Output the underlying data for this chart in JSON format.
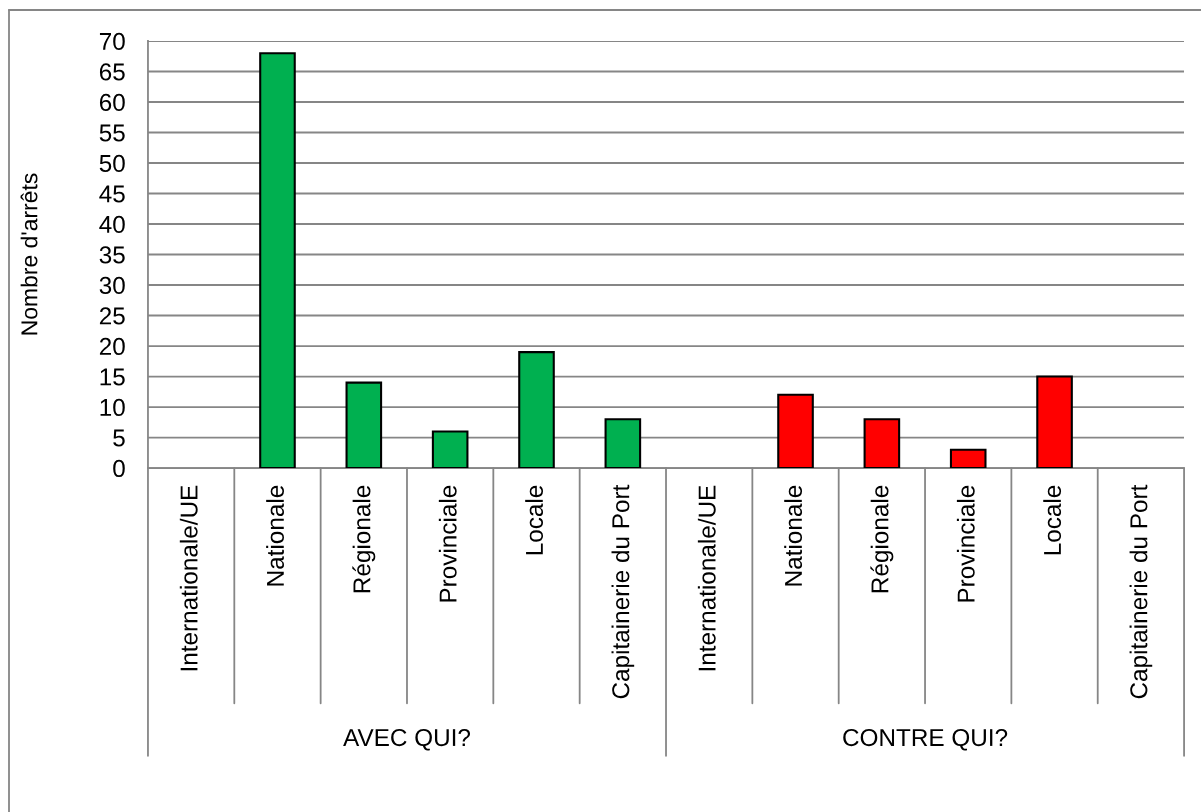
{
  "chart_data": {
    "type": "bar",
    "ylabel": "Nombre d'arrêts",
    "categories": [
      "Internationale/UE",
      "Nationale",
      "Régionale",
      "Provinciale",
      "Locale",
      "Capitainerie du Port",
      "Internationale/UE",
      "Nationale",
      "Régionale",
      "Provinciale",
      "Locale",
      "Capitainerie du Port"
    ],
    "values": [
      null,
      68,
      14,
      6,
      19,
      8,
      null,
      12,
      8,
      3,
      15,
      null
    ],
    "colors": [
      "#00b050",
      "#00b050",
      "#00b050",
      "#00b050",
      "#00b050",
      "#00b050",
      "#ff0000",
      "#ff0000",
      "#ff0000",
      "#ff0000",
      "#ff0000",
      "#ff0000"
    ],
    "ylim": [
      0,
      70
    ],
    "yticks": [
      0,
      5,
      10,
      15,
      20,
      25,
      30,
      35,
      40,
      45,
      50,
      55,
      60,
      65,
      70
    ],
    "grid": "y",
    "annotations": [
      "AVEC QUI?",
      "CONTRE QUI?"
    ]
  }
}
